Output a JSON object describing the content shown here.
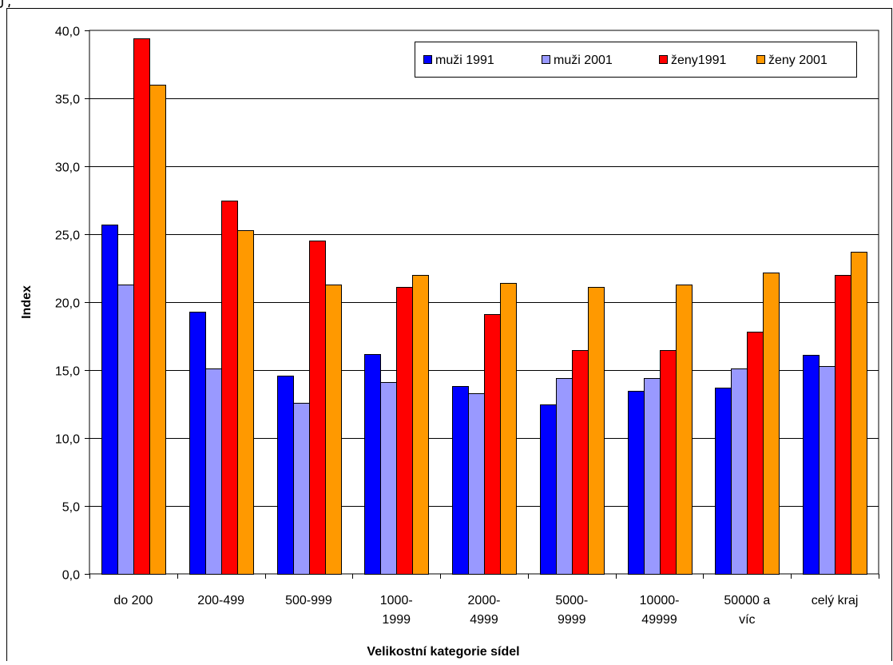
{
  "chart_data": {
    "type": "bar",
    "title": "",
    "xlabel": "Velikostní kategorie sídel",
    "ylabel": "Index",
    "ylim": [
      0,
      40
    ],
    "ytick_step": 5,
    "ytick_labels": [
      "0,0",
      "5,0",
      "10,0",
      "15,0",
      "20,0",
      "25,0",
      "30,0",
      "35,0",
      "40,0"
    ],
    "grid": true,
    "legend_position": "top-right",
    "categories": [
      [
        "do 200"
      ],
      [
        "200-499"
      ],
      [
        "500-999"
      ],
      [
        "1000-",
        "1999"
      ],
      [
        "2000-",
        "4999"
      ],
      [
        "5000-",
        "9999"
      ],
      [
        "10000-",
        "49999"
      ],
      [
        "50000 a",
        "víc"
      ],
      [
        "celý kraj"
      ]
    ],
    "series": [
      {
        "name": "muži 1991",
        "color": "#0000ff",
        "values": [
          25.7,
          19.3,
          14.6,
          16.2,
          13.8,
          12.5,
          13.5,
          13.7,
          16.1
        ]
      },
      {
        "name": "muži 2001",
        "color": "#9999ff",
        "values": [
          21.3,
          15.1,
          12.6,
          14.1,
          13.3,
          14.4,
          14.4,
          15.1,
          15.3
        ]
      },
      {
        "name": "ženy1991",
        "color": "#ff0000",
        "values": [
          39.4,
          27.5,
          24.5,
          21.1,
          19.1,
          16.5,
          16.5,
          17.8,
          22.0
        ]
      },
      {
        "name": "ženy 2001",
        "color": "#ff9900",
        "values": [
          36.0,
          25.3,
          21.3,
          22.0,
          21.4,
          21.1,
          21.3,
          22.2,
          23.7
        ]
      }
    ]
  }
}
